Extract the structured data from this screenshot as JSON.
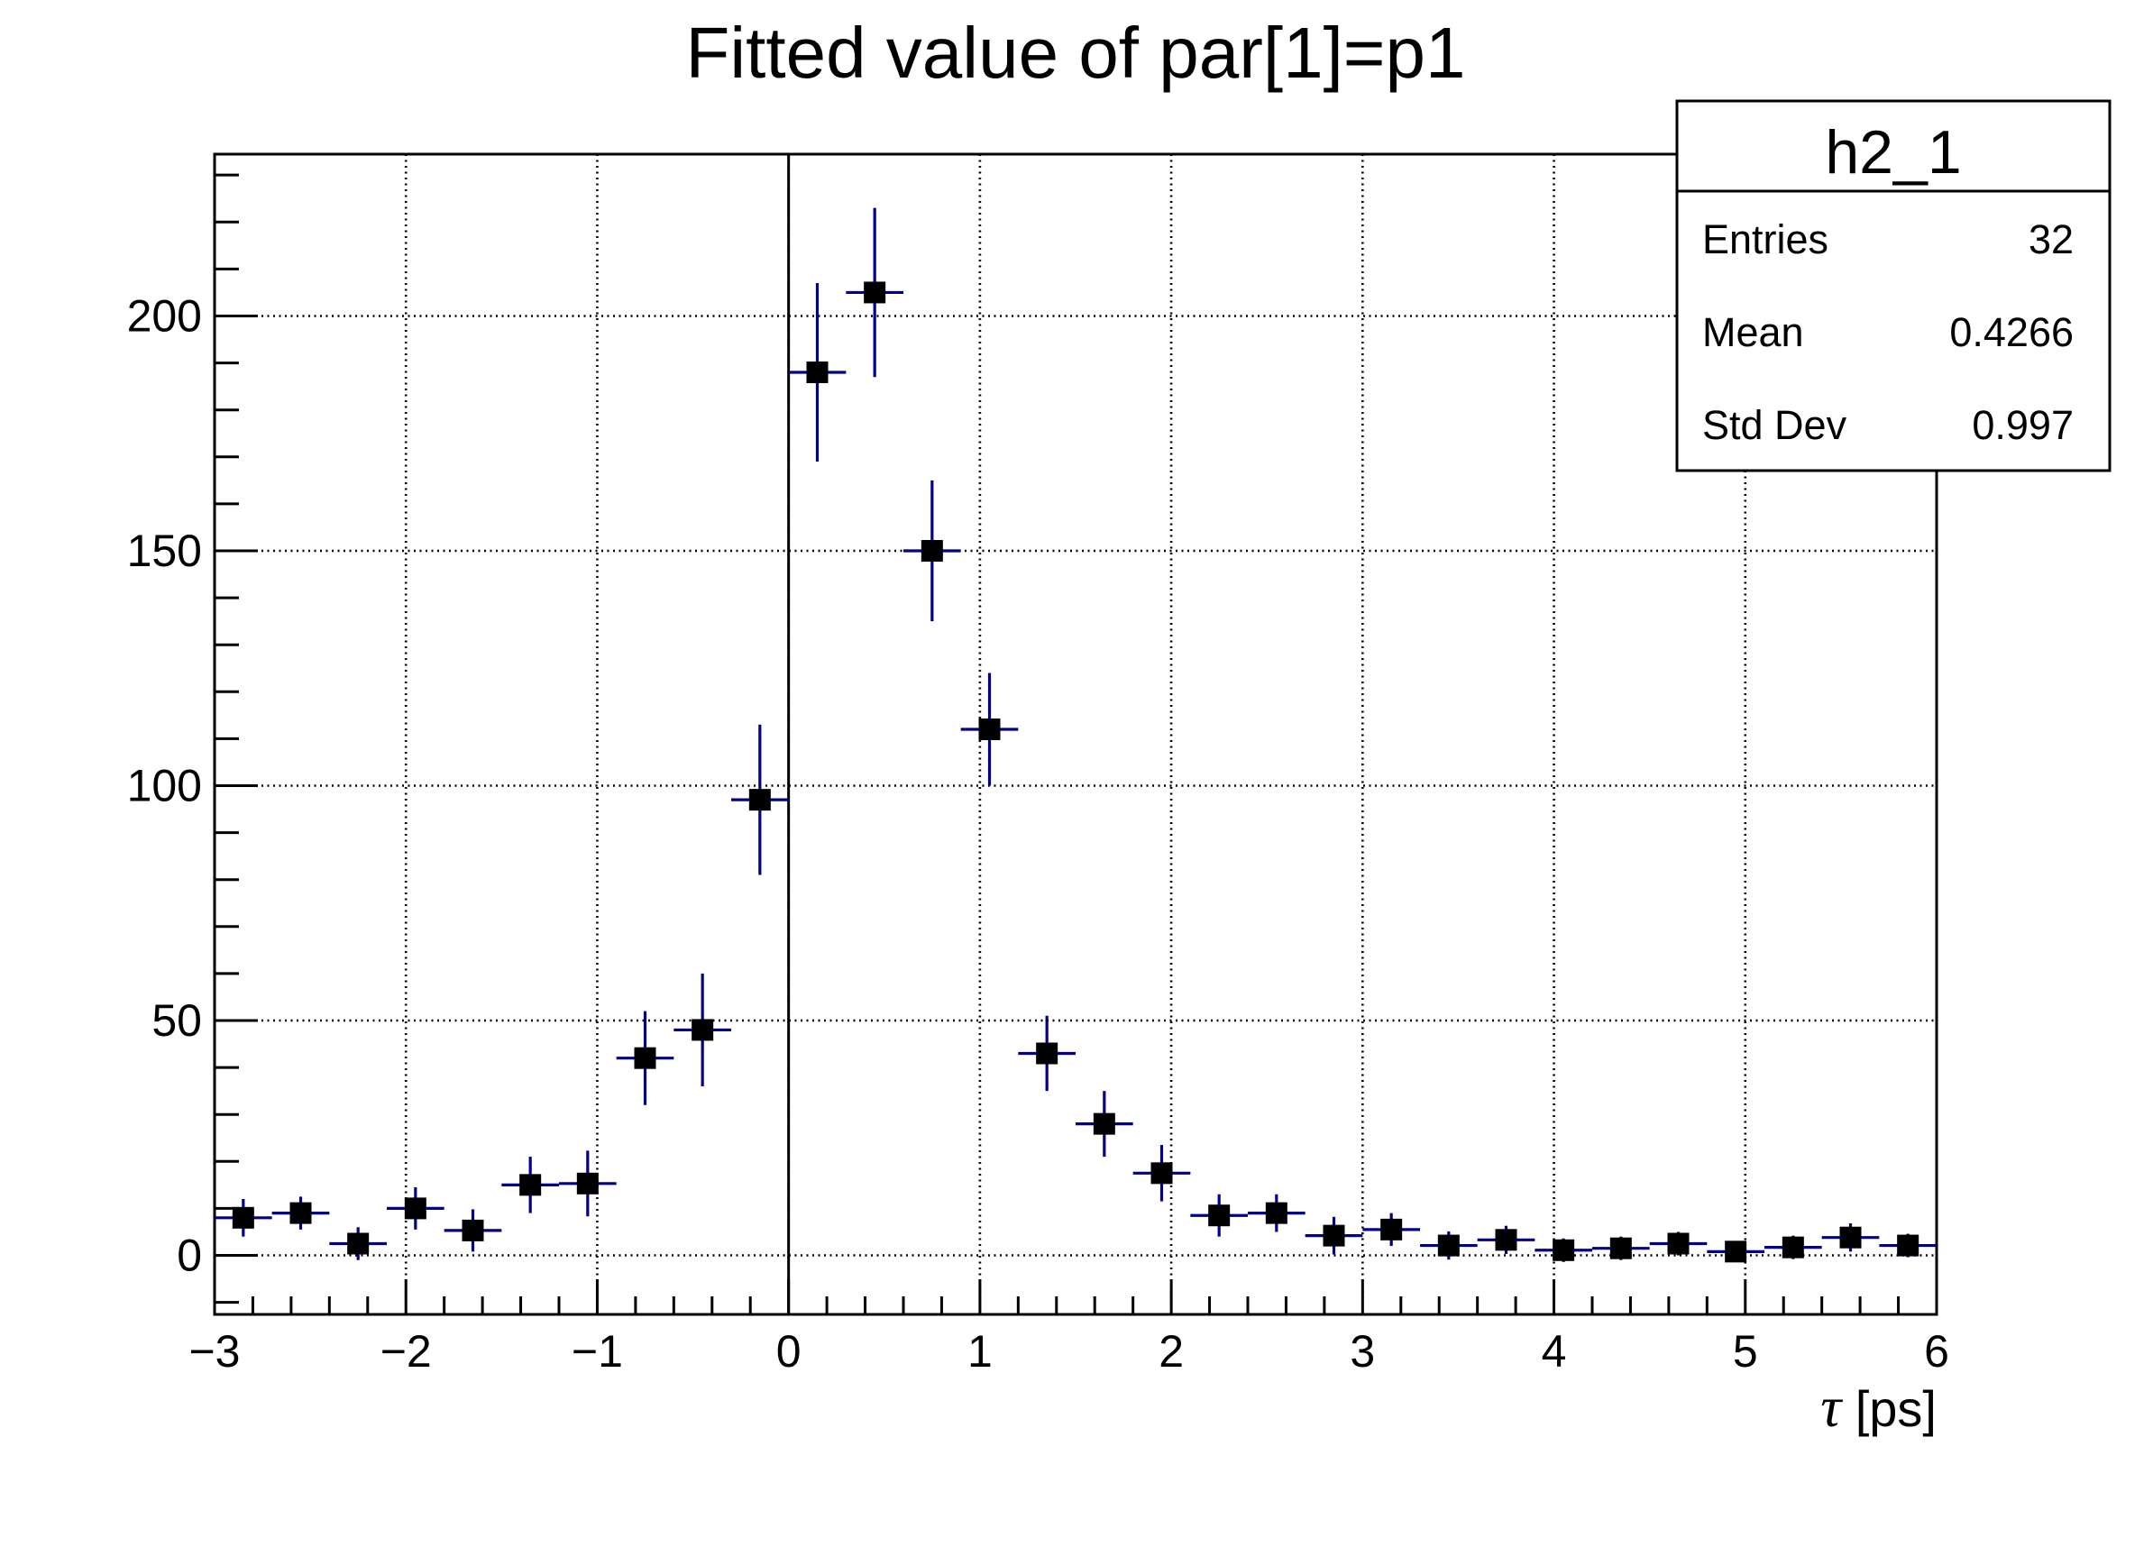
{
  "title": "Fitted value of par[1]=p1",
  "stats_box": {
    "header": "h2_1",
    "rows": [
      {
        "label": "Entries",
        "value": "32"
      },
      {
        "label": "Mean",
        "value": "0.4266"
      },
      {
        "label": "Std Dev",
        "value": "0.997"
      }
    ]
  },
  "x_axis": {
    "title_symbol": "τ",
    "title_rest": " [ps]",
    "min": -3,
    "max": 6,
    "major_ticks": [
      {
        "v": -3,
        "label": "−3"
      },
      {
        "v": -2,
        "label": "−2"
      },
      {
        "v": -1,
        "label": "−1"
      },
      {
        "v": 0,
        "label": "0"
      },
      {
        "v": 1,
        "label": "1"
      },
      {
        "v": 2,
        "label": "2"
      },
      {
        "v": 3,
        "label": "3"
      },
      {
        "v": 4,
        "label": "4"
      },
      {
        "v": 5,
        "label": "5"
      },
      {
        "v": 6,
        "label": "6"
      }
    ],
    "minor_step": 0.2,
    "zero_line": true
  },
  "y_axis": {
    "min": -12.57,
    "max": 234.45,
    "major_ticks": [
      {
        "v": 0,
        "label": "0"
      },
      {
        "v": 50,
        "label": "50"
      },
      {
        "v": 100,
        "label": "100"
      },
      {
        "v": 150,
        "label": "150"
      },
      {
        "v": 200,
        "label": "200"
      }
    ],
    "minor_step": 10,
    "grid": true
  },
  "colors": {
    "marker": "#000000",
    "error_bar": "#00008b",
    "grid": "#000000",
    "frame": "#000000",
    "background": "#ffffff"
  },
  "chart_data": {
    "type": "scatter",
    "title": "Fitted value of par[1]=p1",
    "xlabel": "τ [ps]",
    "ylabel": "",
    "xlim": [
      -3,
      6
    ],
    "ylim": [
      -12.57,
      234.45
    ],
    "grid": "dotted",
    "legend_position": "none",
    "x_bin_half_width": 0.15,
    "series": [
      {
        "name": "h2_1",
        "marker": "filled-square",
        "points": [
          {
            "x": -2.85,
            "y": 8,
            "ey": 4
          },
          {
            "x": -2.55,
            "y": 9,
            "ey": 3.5
          },
          {
            "x": -2.25,
            "y": 2.5,
            "ey": 3.5
          },
          {
            "x": -1.95,
            "y": 10,
            "ey": 4.5
          },
          {
            "x": -1.65,
            "y": 5.3,
            "ey": 4.5
          },
          {
            "x": -1.35,
            "y": 15,
            "ey": 6
          },
          {
            "x": -1.05,
            "y": 15.3,
            "ey": 7
          },
          {
            "x": -0.75,
            "y": 42,
            "ey": 10
          },
          {
            "x": -0.45,
            "y": 48,
            "ey": 12
          },
          {
            "x": -0.15,
            "y": 97,
            "ey": 16
          },
          {
            "x": 0.15,
            "y": 188,
            "ey": 19
          },
          {
            "x": 0.45,
            "y": 205,
            "ey": 18
          },
          {
            "x": 0.75,
            "y": 150,
            "ey": 15
          },
          {
            "x": 1.05,
            "y": 112,
            "ey": 12
          },
          {
            "x": 1.35,
            "y": 43,
            "ey": 8
          },
          {
            "x": 1.65,
            "y": 28,
            "ey": 7
          },
          {
            "x": 1.95,
            "y": 17.5,
            "ey": 6
          },
          {
            "x": 2.25,
            "y": 8.5,
            "ey": 4.5
          },
          {
            "x": 2.55,
            "y": 9,
            "ey": 4
          },
          {
            "x": 2.85,
            "y": 4.2,
            "ey": 4
          },
          {
            "x": 3.15,
            "y": 5.5,
            "ey": 3.5
          },
          {
            "x": 3.45,
            "y": 2.1,
            "ey": 3
          },
          {
            "x": 3.75,
            "y": 3.3,
            "ey": 3
          },
          {
            "x": 4.05,
            "y": 1.1,
            "ey": 2.5
          },
          {
            "x": 4.35,
            "y": 1.5,
            "ey": 2.5
          },
          {
            "x": 4.65,
            "y": 2.5,
            "ey": 2.5
          },
          {
            "x": 4.95,
            "y": 0.8,
            "ey": 2
          },
          {
            "x": 5.25,
            "y": 1.7,
            "ey": 2.5
          },
          {
            "x": 5.55,
            "y": 3.8,
            "ey": 3
          },
          {
            "x": 5.85,
            "y": 2.1,
            "ey": 2.5
          }
        ]
      }
    ]
  }
}
